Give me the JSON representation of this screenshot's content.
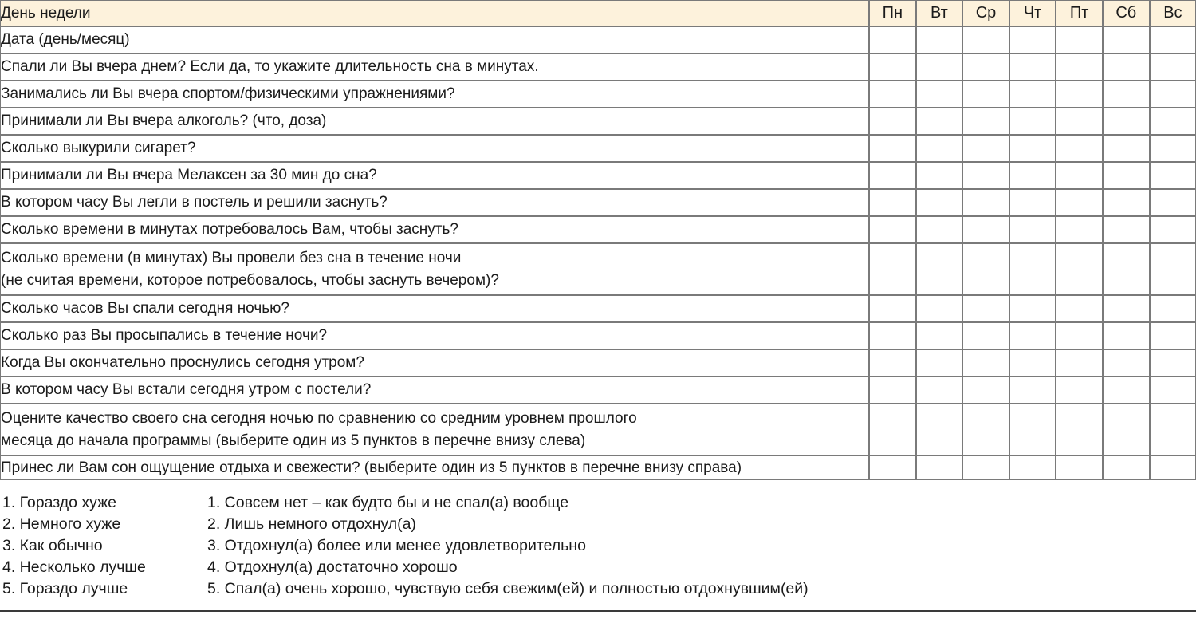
{
  "table": {
    "header_label": "День недели",
    "days": [
      "Пн",
      "Вт",
      "Ср",
      "Чт",
      "Пт",
      "Сб",
      "Вс"
    ],
    "rows": [
      {
        "lines": [
          "Дата (день/месяц)"
        ]
      },
      {
        "lines": [
          "Спали ли Вы вчера днем? Если да, то укажите длительность сна в минутах."
        ]
      },
      {
        "lines": [
          "Занимались ли Вы вчера спортом/физическими упражнениями?"
        ]
      },
      {
        "lines": [
          "Принимали ли Вы вчера алкоголь? (что, доза)"
        ]
      },
      {
        "lines": [
          "Сколько выкурили сигарет?"
        ]
      },
      {
        "lines": [
          "Принимали ли Вы вчера Мелаксен за 30 мин до сна?"
        ]
      },
      {
        "lines": [
          "В котором часу Вы легли в постель и решили заснуть?"
        ]
      },
      {
        "lines": [
          "Сколько времени в минутах потребовалось Вам, чтобы заснуть?"
        ]
      },
      {
        "lines": [
          "Сколько времени (в минутах) Вы провели без сна в течение ночи",
          "(не считая времени, которое потребовалось, чтобы заснуть вечером)?"
        ]
      },
      {
        "lines": [
          "Сколько часов Вы спали сегодня ночью?"
        ]
      },
      {
        "lines": [
          "Сколько раз Вы просыпались в течение ночи?"
        ]
      },
      {
        "lines": [
          "Когда Вы окончательно проснулись сегодня утром?"
        ]
      },
      {
        "lines": [
          "В котором часу Вы встали сегодня утром с постели?"
        ]
      },
      {
        "lines": [
          "Оцените качество своего сна сегодня ночью по сравнению со средним уровнем прошлого",
          "месяца до начала программы (выберите один из 5 пунктов в перечне внизу слева)"
        ]
      },
      {
        "lines": [
          "Принес ли Вам сон ощущение отдыха и свежести? (выберите один из 5 пунктов в перечне внизу справа)"
        ]
      }
    ]
  },
  "legend": {
    "left": [
      "1. Гораздо хуже",
      "2. Немного хуже",
      "3. Как обычно",
      "4. Несколько лучше",
      "5. Гораздо лучше"
    ],
    "right": [
      "1. Совсем нет – как будто бы и не спал(а) вообще",
      "2. Лишь немного отдохнул(а)",
      "3. Отдохнул(а) более или менее удовлетворительно",
      "4. Отдохнул(а) достаточно хорошо",
      "5. Спал(а) очень хорошо, чувствую себя свежим(ей) и полностью отдохнувшим(ей)"
    ]
  },
  "colors": {
    "header_bg": "#fdf2dc",
    "border": "#7a7a7a",
    "text": "#1b1b1b",
    "bottom_rule": "#3a3a3a"
  }
}
